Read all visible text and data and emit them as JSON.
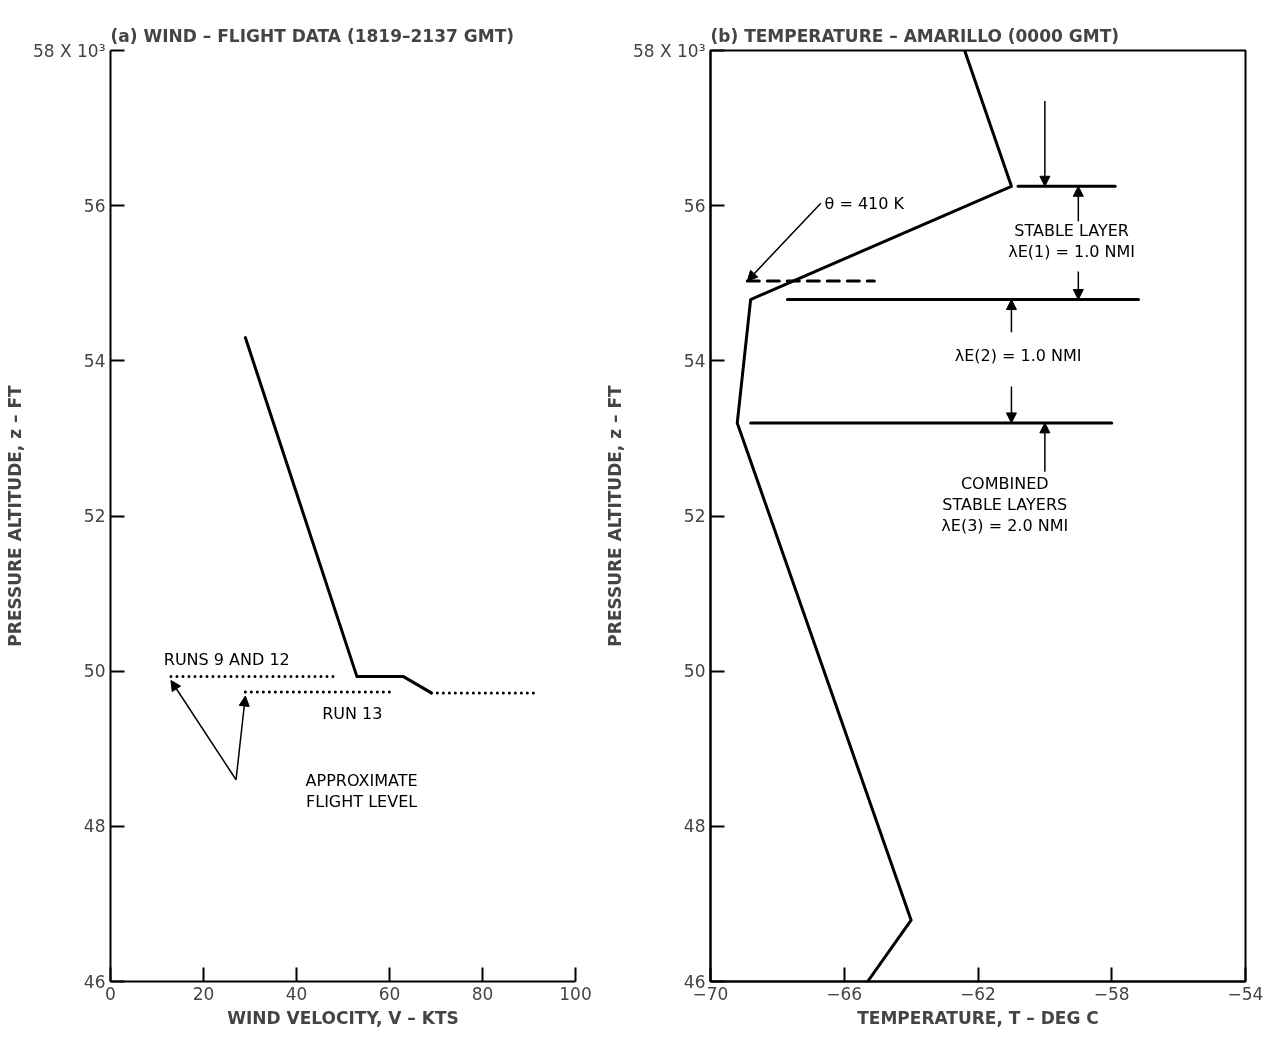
{
  "chart_data": [
    {
      "type": "line",
      "title": "(a) WIND – FLIGHT DATA (1819–2137 GMT)",
      "xlabel": "WIND VELOCITY, V – KTS",
      "ylabel": "PRESSURE ALTITUDE, z – FT",
      "xlim": [
        0,
        100
      ],
      "xticks": [
        0,
        20,
        40,
        60,
        80,
        100
      ],
      "ylim": [
        46,
        58
      ],
      "yticks": [
        46,
        48,
        50,
        52,
        54,
        56,
        {
          "value": 58,
          "label": "58 X 10³"
        }
      ],
      "grid": false,
      "series": [
        {
          "color": "#000000",
          "line_style": "solid",
          "x": [
            29,
            53,
            63,
            69
          ],
          "values": [
            54.3,
            49.93,
            49.93,
            49.72
          ]
        },
        {
          "color": "#000000",
          "line_style": "dotted",
          "x": [
            69,
            92
          ],
          "values": [
            49.72,
            49.72
          ]
        },
        {
          "color": "#000000",
          "line_style": "dotted",
          "x": [
            13,
            48
          ],
          "values": [
            49.93,
            49.93
          ]
        },
        {
          "color": "#000000",
          "line_style": "dotted",
          "x": [
            29,
            61
          ],
          "values": [
            49.73,
            49.73
          ]
        }
      ],
      "annotations": [
        "RUNS 9 AND 12",
        "RUN 13",
        "APPROXIMATE\nFLIGHT LEVEL"
      ]
    },
    {
      "type": "line",
      "title": "(b) TEMPERATURE – AMARILLO (0000 GMT)",
      "xlabel": "TEMPERATURE, T – DEG C",
      "ylabel": "PRESSURE ALTITUDE, z – FT",
      "xlim": [
        -70,
        -54
      ],
      "xticks": [
        -70,
        -66,
        -62,
        -58,
        -54
      ],
      "ylim": [
        46,
        58
      ],
      "yticks": [
        46,
        48,
        50,
        52,
        54,
        56,
        {
          "value": 58,
          "label": "58 X 10³"
        }
      ],
      "grid": false,
      "series": [
        {
          "color": "#000000",
          "line_style": "solid",
          "x": [
            -62.4,
            -61.0,
            -68.8,
            -69.2,
            -64.0,
            -65.3
          ],
          "values": [
            58,
            56.25,
            54.79,
            53.2,
            46.79,
            46
          ]
        },
        {
          "color": "#000000",
          "line_style": "solid",
          "x": [
            -60.8,
            -57.9
          ],
          "values": [
            56.25,
            56.25
          ]
        },
        {
          "color": "#000000",
          "line_style": "solid",
          "x": [
            -67.7,
            -57.2
          ],
          "values": [
            54.79,
            54.79
          ]
        },
        {
          "color": "#000000",
          "line_style": "solid",
          "x": [
            -68.8,
            -58.0
          ],
          "values": [
            53.2,
            53.2
          ]
        },
        {
          "color": "#000000",
          "line_style": "dashed",
          "x": [
            -68.9,
            -65.1
          ],
          "values": [
            55.03,
            55.03
          ]
        }
      ],
      "annotations": [
        {
          "text": "θ = 410 K",
          "x": -68.9,
          "y": 55.03
        },
        {
          "text": "STABLE LAYER\nλE(1) = 1.0 NMI",
          "x": -59.0,
          "y": 56.25
        },
        {
          "text": "λE(2) = 1.0 NMI",
          "x": -61.0,
          "y": 54.79
        },
        {
          "text": "COMBINED\nSTABLE LAYERS\nλE(3) = 2.0 NMI",
          "x": -60.0,
          "y": 53.2
        }
      ]
    }
  ]
}
